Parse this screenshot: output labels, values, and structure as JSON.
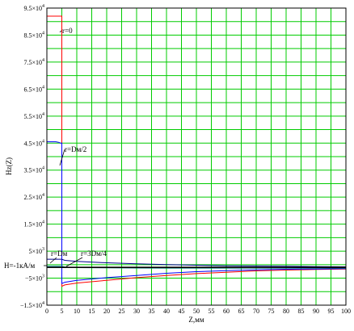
{
  "chart_data": {
    "type": "line",
    "xlabel": "Z,мм",
    "ylabel": "Hz(Z)",
    "xlim": [
      0,
      100
    ],
    "ylim": [
      -15000,
      95000
    ],
    "grid": true,
    "x_tick_labels": [
      "0",
      "5",
      "10",
      "15",
      "20",
      "25",
      "30",
      "35",
      "40",
      "45",
      "50",
      "55",
      "60",
      "65",
      "70",
      "75",
      "80",
      "85",
      "90",
      "95",
      "100"
    ],
    "y_ticks": [
      {
        "value": 95000,
        "mant": "9.5×10",
        "exp": "4"
      },
      {
        "value": 85000,
        "mant": "8.5×10",
        "exp": "4"
      },
      {
        "value": 75000,
        "mant": "7.5×10",
        "exp": "4"
      },
      {
        "value": 65000,
        "mant": "6.5×10",
        "exp": "4"
      },
      {
        "value": 55000,
        "mant": "5.5×10",
        "exp": "4"
      },
      {
        "value": 45000,
        "mant": "4.5×10",
        "exp": "4"
      },
      {
        "value": 35000,
        "mant": "3.5×10",
        "exp": "4"
      },
      {
        "value": 25000,
        "mant": "2.5×10",
        "exp": "4"
      },
      {
        "value": 15000,
        "mant": "1.5×10",
        "exp": "4"
      },
      {
        "value": 5000,
        "mant": "5×10",
        "exp": "3"
      },
      {
        "value": -5000,
        "mant": "−5×10",
        "exp": "3"
      },
      {
        "value": -15000,
        "mant": "−1.5×10",
        "exp": "4"
      }
    ],
    "series": [
      {
        "name": "r=0",
        "color": "#ff0000",
        "x": [
          0,
          0,
          5,
          5,
          6,
          10,
          20,
          30,
          40,
          50,
          60,
          70,
          80,
          90,
          100
        ],
        "y": [
          0,
          92000,
          92000,
          -8000,
          -7500,
          -6800,
          -5800,
          -4800,
          -4000,
          -3300,
          -2800,
          -2300,
          -2000,
          -1800,
          -1600
        ]
      },
      {
        "name": "r=Dм/2",
        "color": "#0000ff",
        "x": [
          0,
          0,
          3,
          4,
          4.6,
          5,
          5,
          6,
          10,
          20,
          30,
          40,
          50,
          60,
          70,
          80,
          90,
          100
        ],
        "y": [
          0,
          45500,
          45500,
          45300,
          45000,
          45000,
          -7000,
          -6500,
          -5800,
          -4800,
          -4000,
          -3200,
          -2600,
          -2200,
          -1900,
          -1700,
          -1600,
          -1500
        ]
      },
      {
        "name": "r=3Dм/4",
        "color": "#00008b",
        "x": [
          0,
          5,
          6,
          10,
          20,
          30,
          40,
          50,
          60,
          70,
          80,
          90,
          100
        ],
        "y": [
          2000,
          2000,
          1600,
          1200,
          700,
          300,
          0,
          -200,
          -400,
          -500,
          -600,
          -700,
          -800
        ]
      },
      {
        "name": "r=Dм",
        "color": "#008080",
        "x": [
          0,
          5,
          6,
          10,
          20,
          30,
          40,
          50,
          60,
          70,
          80,
          90,
          100
        ],
        "y": [
          -600,
          -600,
          -900,
          -1100,
          -1200,
          -1250,
          -1270,
          -1280,
          -1290,
          -1290,
          -1290,
          -1290,
          -1290
        ]
      },
      {
        "name": "H=-1кА/м",
        "color": "#000000",
        "x": [
          0,
          100
        ],
        "y": [
          -1000,
          -1000
        ]
      }
    ],
    "annotations": [
      {
        "text": "r=0",
        "series": "r=0"
      },
      {
        "text": "r=Dм/2",
        "series": "r=Dм/2"
      },
      {
        "text": "r=Dм",
        "series": "r=Dм"
      },
      {
        "text": "r=3Dм/4",
        "series": "r=3Dм/4"
      },
      {
        "text": "H=-1кА/м",
        "series": "H=-1кА/м"
      }
    ]
  }
}
